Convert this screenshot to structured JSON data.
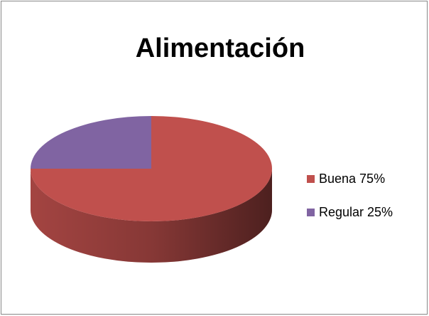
{
  "chart_data": {
    "type": "pie",
    "title": "Alimentación",
    "categories": [
      "Buena 75%",
      "Regular 25%"
    ],
    "values": [
      75,
      25
    ],
    "colors": [
      "#c0504d",
      "#8064a2"
    ],
    "legend": "right"
  }
}
